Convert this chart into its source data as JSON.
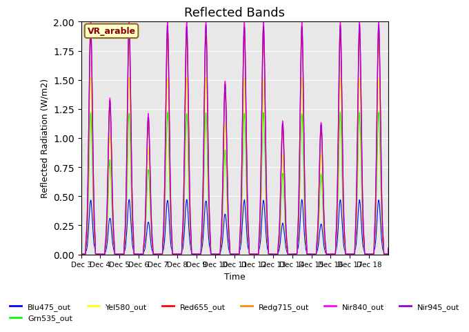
{
  "title": "Reflected Bands",
  "xlabel": "Time",
  "ylabel": "Reflected Radiation (W/m2)",
  "ylim": [
    0,
    2.0
  ],
  "annotation_text": "VR_arable",
  "series_order": [
    "Blu475_out",
    "Grn535_out",
    "Yel580_out",
    "Red655_out",
    "Redg715_out",
    "Nir840_out",
    "Nir945_out"
  ],
  "series": {
    "Blu475_out": {
      "color": "#0000ff",
      "label": "Blu475_out"
    },
    "Grn535_out": {
      "color": "#00ff00",
      "label": "Grn535_out"
    },
    "Yel580_out": {
      "color": "#ffff00",
      "label": "Yel580_out"
    },
    "Red655_out": {
      "color": "#ff0000",
      "label": "Red655_out"
    },
    "Redg715_out": {
      "color": "#ff8c00",
      "label": "Redg715_out"
    },
    "Nir840_out": {
      "color": "#ff00ff",
      "label": "Nir840_out"
    },
    "Nir945_out": {
      "color": "#9400d3",
      "label": "Nir945_out"
    }
  },
  "xtick_labels": [
    "Dec 3",
    "Dec 4",
    "Dec 5",
    "Dec 6",
    "Dec 7",
    "Dec 8",
    "Dec 9",
    "Dec 10",
    "Dec 11",
    "Dec 12",
    "Dec 13",
    "Dec 14",
    "Dec 15",
    "Dec 16",
    "Dec 17",
    "Dec 18"
  ],
  "n_days": 16,
  "pts_per_day": 48,
  "bg_color": "#e8e8e8",
  "title_fontsize": 13,
  "lw": 0.8
}
